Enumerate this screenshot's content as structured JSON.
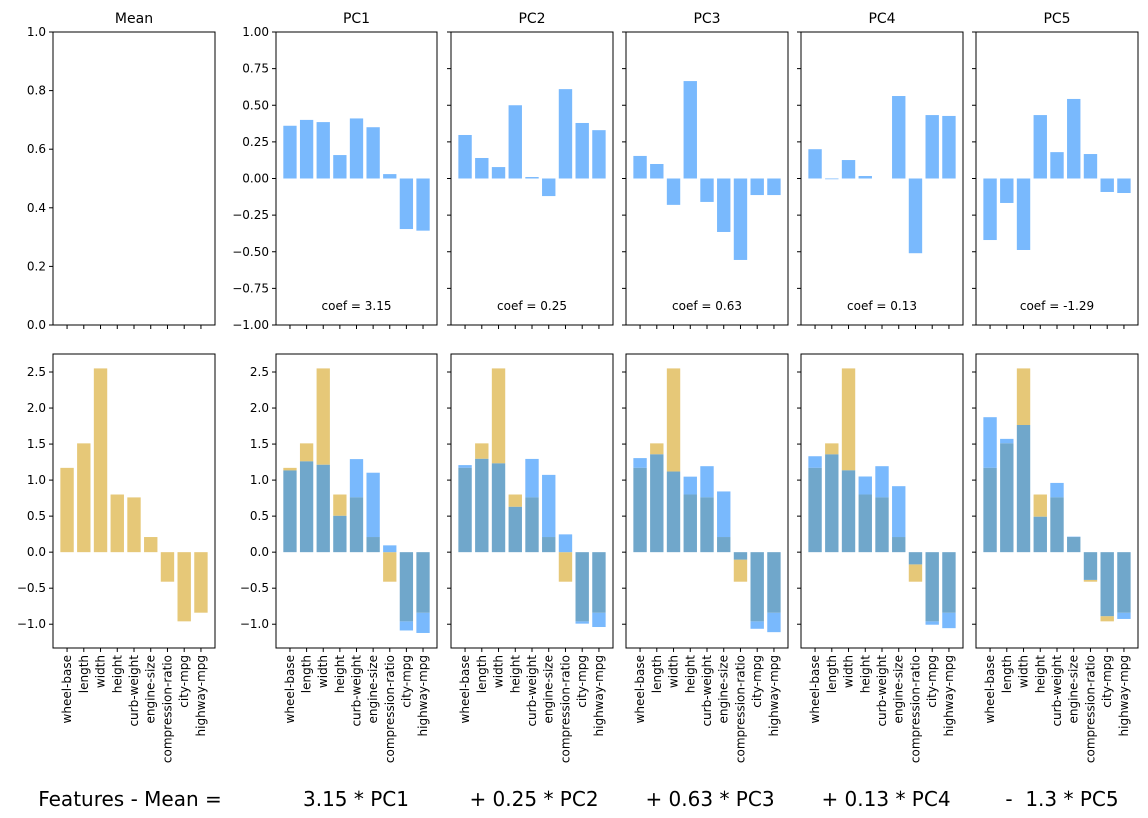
{
  "chart_data": {
    "type": "bar",
    "description": "PCA reconstruction: top row shows mean and principal component loadings; bottom row shows features minus mean (gold) and cumulative reconstruction (blue)",
    "categories": [
      "wheel-base",
      "length",
      "width",
      "height",
      "curb-weight",
      "engine-size",
      "compression-ratio",
      "city-mpg",
      "highway-mpg"
    ],
    "colors": {
      "features": "#e6c878",
      "component": "#79b9fd",
      "overlap": "#70a7cb"
    },
    "top_row": {
      "panels": [
        {
          "title": "Mean",
          "ylim": [
            0.0,
            1.0
          ],
          "yticks": [
            "0.0",
            "0.2",
            "0.4",
            "0.6",
            "0.8",
            "1.0"
          ],
          "ytick_values": [
            0.0,
            0.2,
            0.4,
            0.6,
            0.8,
            1.0
          ],
          "values": []
        },
        {
          "title": "PC1",
          "coef_label": "coef = 3.15",
          "ylim": [
            -1.0,
            1.0
          ],
          "yticks": [
            "1.00",
            "0.75",
            "0.50",
            "0.25",
            "0.00",
            "−0.25",
            "−0.50",
            "−0.75",
            "−1.00"
          ],
          "ytick_values": [
            1.0,
            0.75,
            0.5,
            0.25,
            0.0,
            -0.25,
            -0.5,
            -0.75,
            -1.0
          ],
          "values": [
            0.36,
            0.4,
            0.385,
            0.16,
            0.41,
            0.35,
            0.03,
            -0.345,
            -0.356
          ]
        },
        {
          "title": "PC2",
          "coef_label": "coef = 0.25",
          "ylim": [
            -1.0,
            1.0
          ],
          "values": [
            0.297,
            0.14,
            0.078,
            0.5,
            0.01,
            -0.12,
            0.61,
            0.379,
            0.33
          ]
        },
        {
          "title": "PC3",
          "coef_label": "coef = 0.63",
          "ylim": [
            -1.0,
            1.0
          ],
          "values": [
            0.154,
            0.099,
            -0.18,
            0.665,
            -0.16,
            -0.365,
            -0.556,
            -0.113,
            -0.113
          ]
        },
        {
          "title": "PC4",
          "coef_label": "coef = 0.13",
          "ylim": [
            -1.0,
            1.0
          ],
          "values": [
            0.2,
            -0.005,
            0.126,
            0.017,
            0.0,
            0.563,
            -0.51,
            0.433,
            0.427
          ]
        },
        {
          "title": "PC5",
          "coef_label": "coef = -1.29",
          "ylim": [
            -1.0,
            1.0
          ],
          "values": [
            -0.42,
            -0.167,
            -0.488,
            0.433,
            0.18,
            0.543,
            0.167,
            -0.092,
            -0.099
          ]
        }
      ]
    },
    "bottom_row": {
      "ylim": [
        -1.33,
        2.75
      ],
      "yticks": [
        "2.5",
        "2.0",
        "1.5",
        "1.0",
        "0.5",
        "0.0",
        "−0.5",
        "−1.0"
      ],
      "ytick_values": [
        2.5,
        2.0,
        1.5,
        1.0,
        0.5,
        0.0,
        -0.5,
        -1.0
      ],
      "features_minus_mean": [
        1.17,
        1.51,
        2.55,
        0.8,
        0.76,
        0.21,
        -0.41,
        -0.96,
        -0.84
      ],
      "coefs": [
        3.15,
        0.25,
        0.63,
        0.13,
        -1.29
      ]
    },
    "equation": [
      "Features - Mean =",
      "3.15 * PC1",
      "+ 0.25 * PC2",
      "+ 0.63 * PC3",
      "+ 0.13 * PC4",
      "-  1.3 * PC5"
    ]
  }
}
